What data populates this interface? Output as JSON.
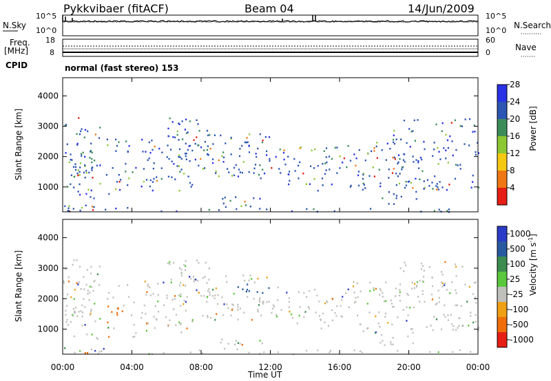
{
  "header": {
    "station": "Pykkvibaer (fitACF)",
    "beam": "Beam 04",
    "date": "14/Jun/2009"
  },
  "noise_panel": {
    "left_label": "N.Sky",
    "right_label": "N.Search",
    "left_ticks": [
      "10^5",
      "10^0"
    ],
    "right_ticks": [
      "10^5",
      "10^0"
    ]
  },
  "freq_panel": {
    "left_label_1": "Freq.",
    "left_label_2": "[MHz]",
    "right_label": "Nave",
    "left_ticks": [
      "18",
      "8"
    ],
    "right_ticks": [
      "60",
      "0"
    ]
  },
  "cpid": {
    "label": "CPID",
    "value": "normal (fast stereo) 153"
  },
  "chart_data": [
    {
      "type": "heatmap",
      "name": "power",
      "ylabel": "Slant Range [km]",
      "xlabel": "",
      "x_ticks": [
        "00:00",
        "04:00",
        "08:00",
        "12:00",
        "16:00",
        "20:00",
        "00:00"
      ],
      "x_hours": [
        0,
        4,
        8,
        12,
        16,
        20,
        24
      ],
      "xlim": [
        0,
        24
      ],
      "ylim": [
        180,
        4600
      ],
      "y_ticks": [
        1000,
        2000,
        3000,
        4000
      ],
      "colorbar": {
        "label": "Power [dB]",
        "ticks": [
          "4",
          "8",
          "12",
          "16",
          "20",
          "24",
          "28"
        ],
        "colors": [
          "#2a32e6",
          "#2c55b4",
          "#3c8c5a",
          "#8cc832",
          "#f5c814",
          "#f07814",
          "#e61e14"
        ]
      }
    },
    {
      "type": "heatmap",
      "name": "velocity",
      "ylabel": "Slant Range [km]",
      "xlabel": "Time UT",
      "x_ticks": [
        "00:00",
        "04:00",
        "08:00",
        "12:00",
        "16:00",
        "20:00",
        "00:00"
      ],
      "x_hours": [
        0,
        4,
        8,
        12,
        16,
        20,
        24
      ],
      "xlim": [
        0,
        24
      ],
      "ylim": [
        180,
        4600
      ],
      "y_ticks": [
        1000,
        2000,
        3000,
        4000
      ],
      "colorbar": {
        "label": "Velocity [m s",
        "label_sup": "-1",
        "label_end": "]",
        "ticks": [
          "1000",
          "500",
          "100",
          "25",
          "-25",
          "-100",
          "-500",
          "-1000"
        ],
        "colors": [
          "#2a3cc8",
          "#285aa0",
          "#3c8c50",
          "#5ac83c",
          "#c0c0bc",
          "#f0a014",
          "#f06e0a",
          "#e61e14"
        ]
      }
    }
  ]
}
